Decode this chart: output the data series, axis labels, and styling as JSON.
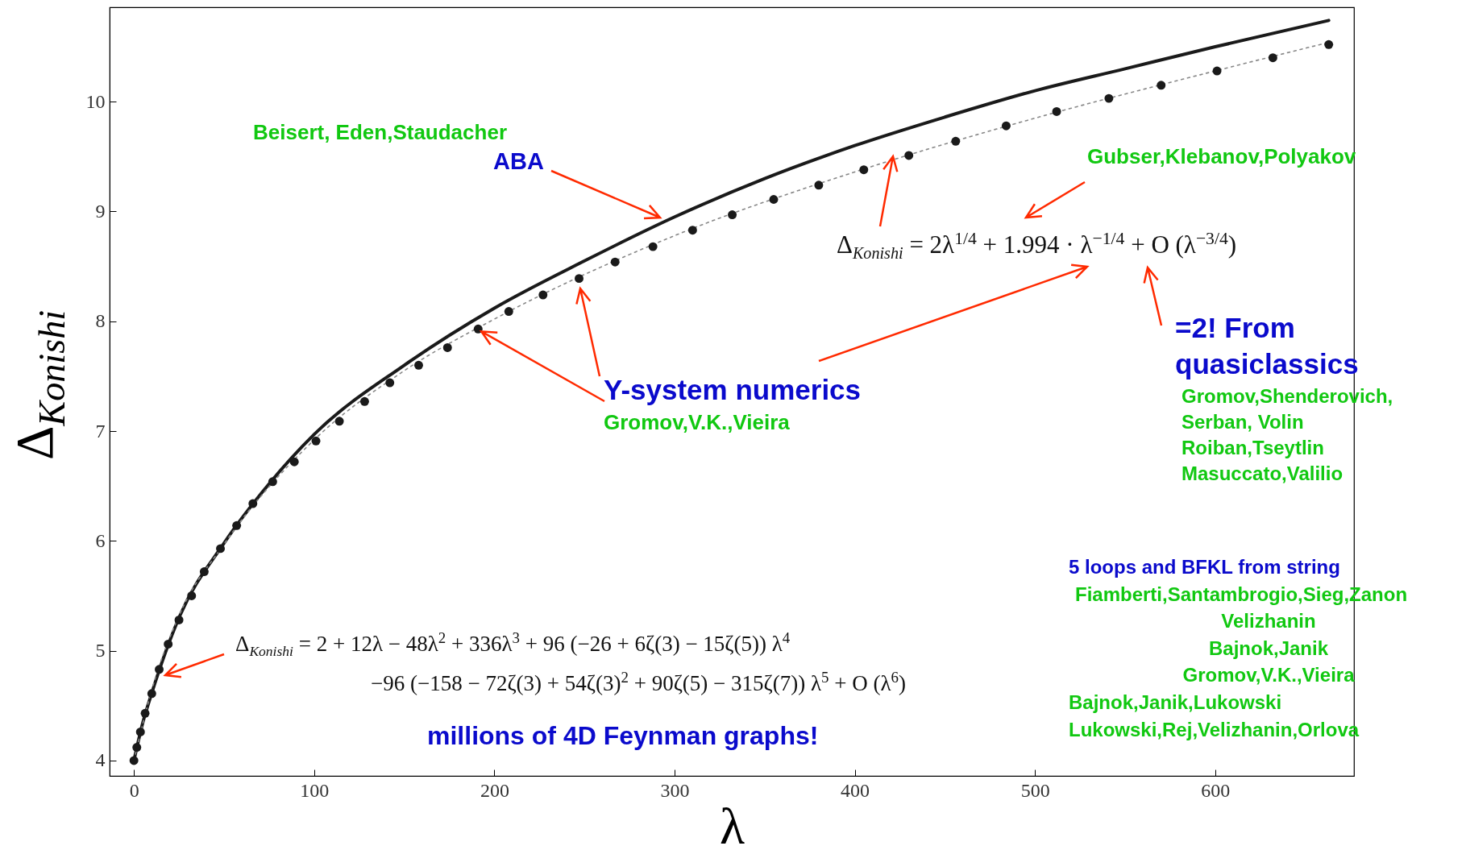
{
  "chart_data": {
    "type": "scatter",
    "xlabel": "λ",
    "ylabel": "Δ$_{Konishi}$",
    "xlim": [
      -13.5,
      677
    ],
    "ylim": [
      3.86,
      10.86
    ],
    "xticks": [
      0,
      100,
      200,
      300,
      400,
      500,
      600
    ],
    "yticks": [
      4,
      5,
      6,
      7,
      8,
      9,
      10
    ],
    "series": [
      {
        "type": "scatter",
        "marker": "circle",
        "color": "#1a1a1a",
        "x": [
          0,
          1.6,
          3.6,
          6.2,
          9.9,
          14,
          19,
          25,
          32,
          39,
          48,
          57,
          66,
          77,
          89,
          101,
          114,
          128,
          142,
          158,
          174,
          191,
          208,
          227,
          247,
          267,
          288,
          310,
          332,
          355,
          380,
          405,
          430,
          456,
          484,
          512,
          541,
          570,
          601,
          632,
          663
        ],
        "values": [
          4.0,
          4.12,
          4.26,
          4.43,
          4.61,
          4.83,
          5.06,
          5.28,
          5.5,
          5.72,
          5.93,
          6.14,
          6.34,
          6.54,
          6.72,
          6.91,
          7.09,
          7.27,
          7.44,
          7.6,
          7.76,
          7.93,
          8.09,
          8.24,
          8.39,
          8.54,
          8.68,
          8.83,
          8.97,
          9.11,
          9.24,
          9.38,
          9.51,
          9.64,
          9.78,
          9.91,
          10.03,
          10.15,
          10.28,
          10.4,
          10.52
        ]
      },
      {
        "type": "line",
        "color": "#1a1a1a",
        "x": [
          0,
          5,
          10,
          25,
          50,
          75,
          100,
          150,
          200,
          250,
          300,
          350,
          400,
          450,
          500,
          550,
          600,
          663
        ],
        "values": [
          4.0,
          4.35,
          4.62,
          5.3,
          5.98,
          6.52,
          6.97,
          7.6,
          8.12,
          8.55,
          8.95,
          9.3,
          9.6,
          9.86,
          10.1,
          10.3,
          10.5,
          10.74
        ]
      },
      {
        "type": "line",
        "line_style": "dotted",
        "color": "#888888",
        "x": [
          0,
          10,
          25,
          50,
          100,
          150,
          200,
          300,
          400,
          500,
          600,
          663
        ],
        "values": [
          4.0,
          4.65,
          5.32,
          5.97,
          6.92,
          7.55,
          8.02,
          8.78,
          9.36,
          9.85,
          10.28,
          10.54
        ]
      }
    ],
    "annotations": [
      "Beisert, Eden,Staudacher",
      "ABA",
      "Gubser,Klebanov,Polyakov",
      "Δ$_{Konishi}$  =  2λ$^{1/4}$ + 1.994 · λ$^{−1/4}$ + O (λ$^{−3/4}$)",
      "=2!   From",
      "quasiclassics",
      "Gromov,Shenderovich,",
      "Serban, Volin",
      "Roiban,Tseytlin",
      "Masuccato,Valilio",
      {
        "text": "Y-system numerics",
        "x": 191,
        "y": 7.93
      },
      "Gromov,V.K.,Vieira",
      "Δ$_{Konishi}$  =  2 + 12λ − 48λ$^{2}$ + 336λ$^{3}$ + 96 (−26 + 6ζ(3) − 15ζ(5)) λ$^{4}$",
      "−96 (−158 − 72ζ(3) + 54ζ(3)$^{2}$ + 90ζ(5) − 315ζ(7)) λ$^{5}$ + O (λ$^{6}$)",
      "millions of 4D Feynman graphs!",
      "5 loops and BFKL  from string",
      "Fiamberti,Santambrogio,Sieg,Zanon",
      "Velizhanin",
      "Bajnok,Janik",
      "Gromov,V.K.,Vieira",
      "Bajnok,Janik,Lukowski",
      "Lukowski,Rej,Velizhanin,Orlova"
    ]
  }
}
